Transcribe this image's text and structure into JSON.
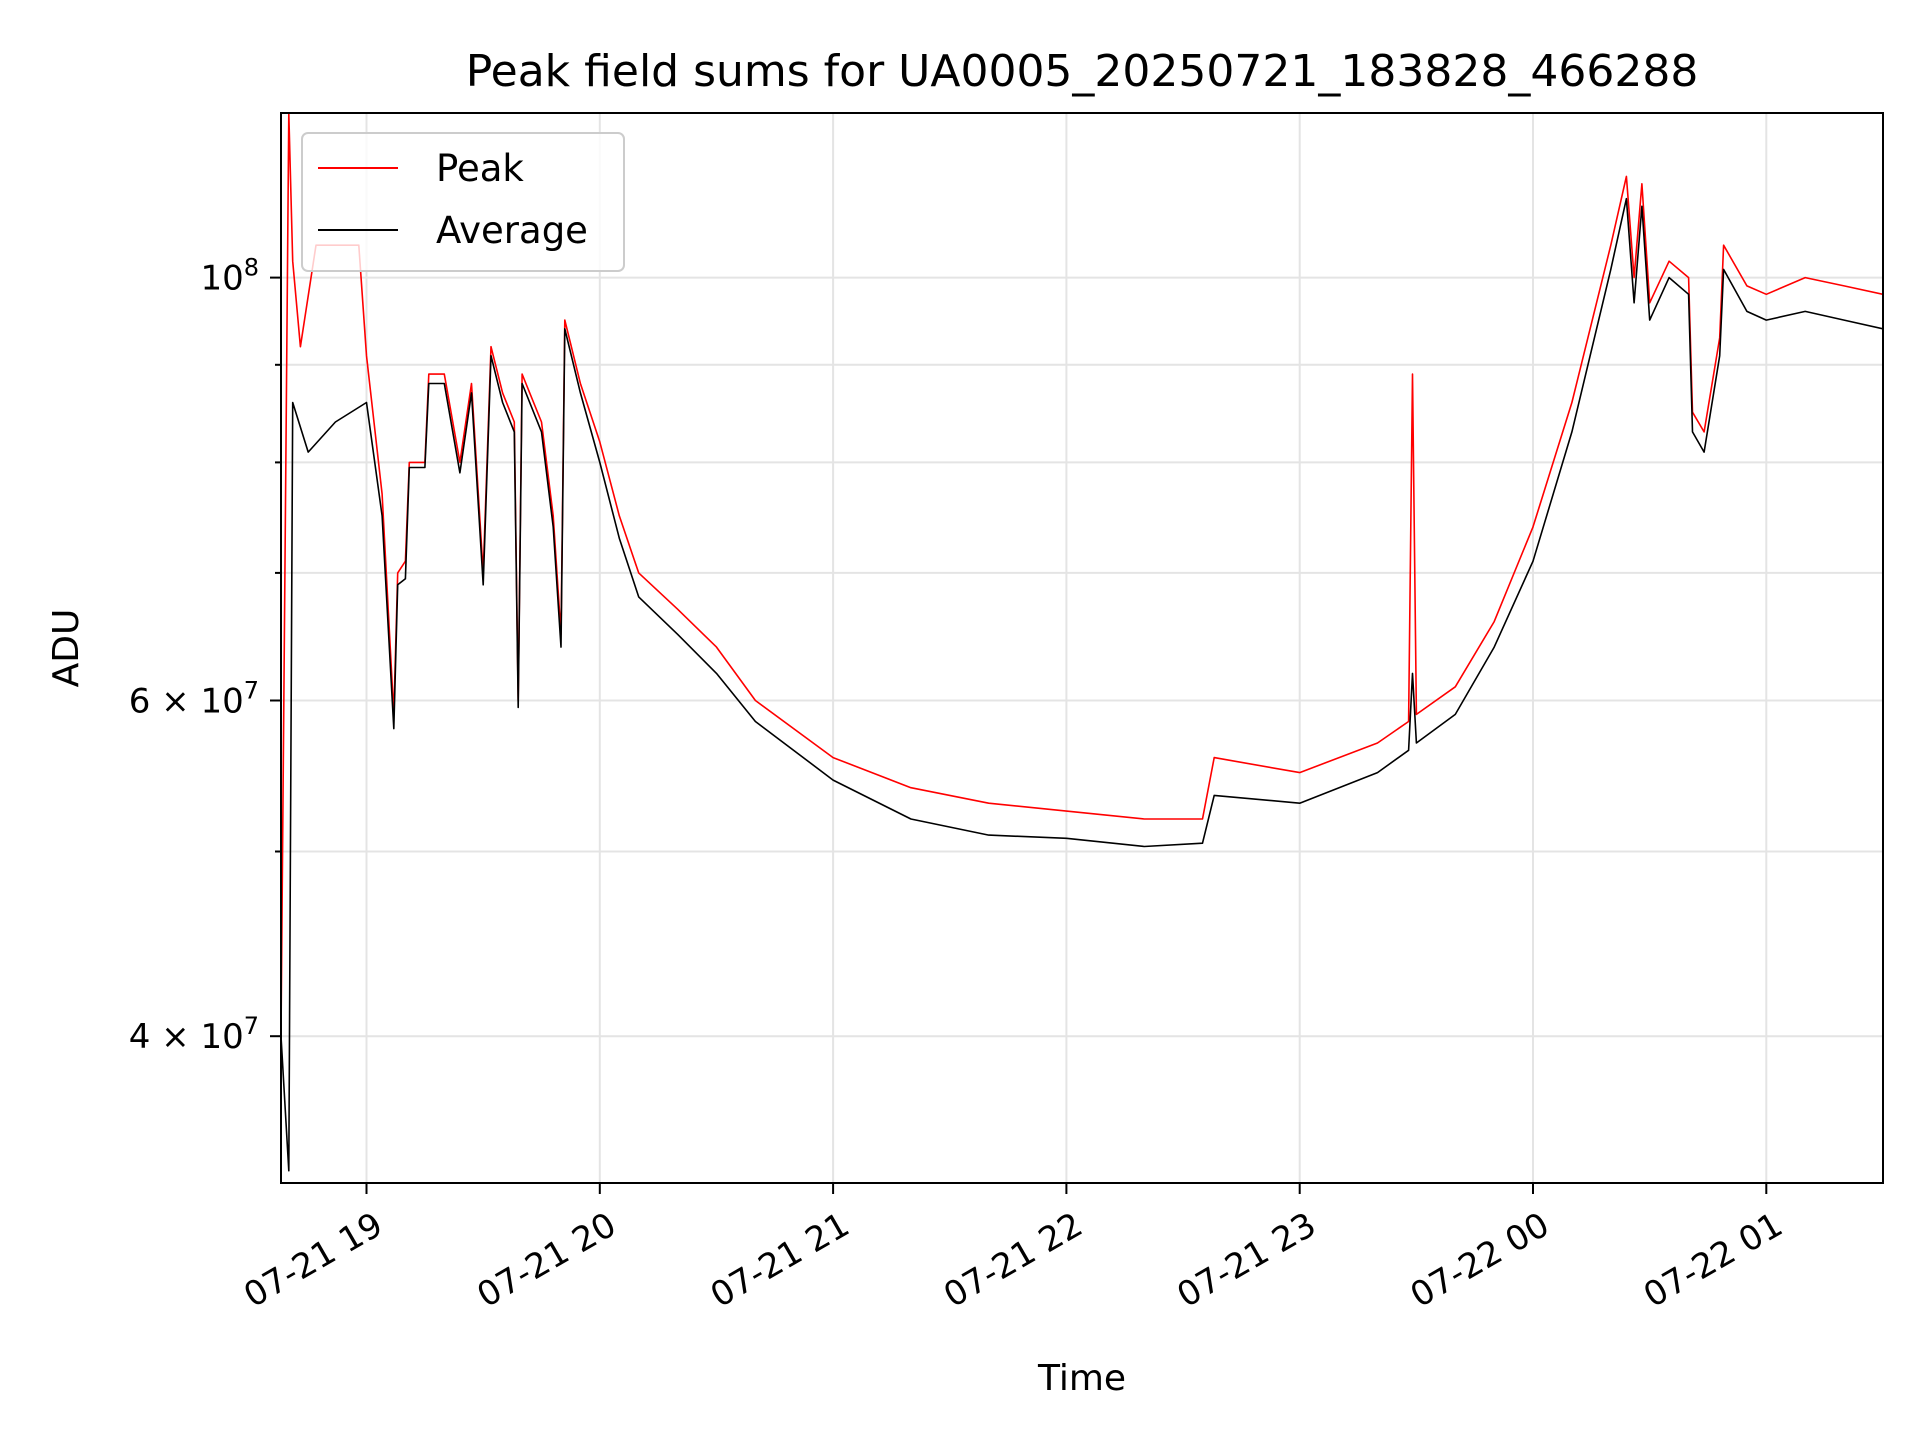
{
  "chart_data": {
    "type": "line",
    "title": "Peak field sums for UA0005_20250721_183828_466288",
    "xlabel": "Time",
    "ylabel": "ADU",
    "x_range": [
      "2025-07-21 18:38",
      "2025-07-22 01:30"
    ],
    "ylim": [
      33500000,
      122000000
    ],
    "yscale": "log",
    "grid": true,
    "legend_position": "top-left",
    "x_ticks": [
      {
        "t": "2025-07-21 19:00",
        "label": "07-21 19"
      },
      {
        "t": "2025-07-21 20:00",
        "label": "07-21 20"
      },
      {
        "t": "2025-07-21 21:00",
        "label": "07-21 21"
      },
      {
        "t": "2025-07-21 22:00",
        "label": "07-21 22"
      },
      {
        "t": "2025-07-21 23:00",
        "label": "07-21 23"
      },
      {
        "t": "2025-07-22 00:00",
        "label": "07-22 00"
      },
      {
        "t": "2025-07-22 01:00",
        "label": "07-22 01"
      }
    ],
    "y_major_ticks": [
      {
        "v": 40000000,
        "base": "4 × 10",
        "exp": "7"
      },
      {
        "v": 60000000,
        "base": "6 × 10",
        "exp": "7"
      },
      {
        "v": 100000000,
        "base": "10",
        "exp": "8"
      }
    ],
    "y_minor_ticks": [
      50000000,
      70000000,
      80000000,
      90000000
    ],
    "series": [
      {
        "name": "Peak",
        "color": "#ff0000",
        "points": [
          [
            "2025-07-21 18:38",
            40000000
          ],
          [
            "2025-07-21 18:40",
            122000000
          ],
          [
            "2025-07-21 18:41",
            102000000
          ],
          [
            "2025-07-21 18:43",
            92000000
          ],
          [
            "2025-07-21 18:47",
            104000000
          ],
          [
            "2025-07-21 18:52",
            104000000
          ],
          [
            "2025-07-21 18:58",
            104000000
          ],
          [
            "2025-07-21 19:00",
            91000000
          ],
          [
            "2025-07-21 19:04",
            77000000
          ],
          [
            "2025-07-21 19:07",
            59000000
          ],
          [
            "2025-07-21 19:08",
            70000000
          ],
          [
            "2025-07-21 19:10",
            71000000
          ],
          [
            "2025-07-21 19:11",
            80000000
          ],
          [
            "2025-07-21 19:15",
            80000000
          ],
          [
            "2025-07-21 19:16",
            89000000
          ],
          [
            "2025-07-21 19:20",
            89000000
          ],
          [
            "2025-07-21 19:24",
            80000000
          ],
          [
            "2025-07-21 19:27",
            88000000
          ],
          [
            "2025-07-21 19:30",
            70000000
          ],
          [
            "2025-07-21 19:32",
            92000000
          ],
          [
            "2025-07-21 19:35",
            87000000
          ],
          [
            "2025-07-21 19:38",
            84000000
          ],
          [
            "2025-07-21 19:39",
            60000000
          ],
          [
            "2025-07-21 19:40",
            89000000
          ],
          [
            "2025-07-21 19:45",
            84000000
          ],
          [
            "2025-07-21 19:48",
            75000000
          ],
          [
            "2025-07-21 19:50",
            65000000
          ],
          [
            "2025-07-21 19:51",
            95000000
          ],
          [
            "2025-07-21 19:55",
            88000000
          ],
          [
            "2025-07-21 20:00",
            82000000
          ],
          [
            "2025-07-21 20:05",
            75000000
          ],
          [
            "2025-07-21 20:10",
            70000000
          ],
          [
            "2025-07-21 20:20",
            67000000
          ],
          [
            "2025-07-21 20:30",
            64000000
          ],
          [
            "2025-07-21 20:40",
            60000000
          ],
          [
            "2025-07-21 21:00",
            56000000
          ],
          [
            "2025-07-21 21:20",
            54000000
          ],
          [
            "2025-07-21 21:40",
            53000000
          ],
          [
            "2025-07-21 22:00",
            52500000
          ],
          [
            "2025-07-21 22:20",
            52000000
          ],
          [
            "2025-07-21 22:35",
            52000000
          ],
          [
            "2025-07-21 22:38",
            56000000
          ],
          [
            "2025-07-21 23:00",
            55000000
          ],
          [
            "2025-07-21 23:20",
            57000000
          ],
          [
            "2025-07-21 23:28",
            58500000
          ],
          [
            "2025-07-21 23:29",
            89000000
          ],
          [
            "2025-07-21 23:30",
            59000000
          ],
          [
            "2025-07-21 23:40",
            61000000
          ],
          [
            "2025-07-21 23:50",
            66000000
          ],
          [
            "2025-07-22 00:00",
            74000000
          ],
          [
            "2025-07-22 00:10",
            86000000
          ],
          [
            "2025-07-22 00:20",
            104000000
          ],
          [
            "2025-07-22 00:24",
            113000000
          ],
          [
            "2025-07-22 00:26",
            100000000
          ],
          [
            "2025-07-22 00:28",
            112000000
          ],
          [
            "2025-07-22 00:30",
            97000000
          ],
          [
            "2025-07-22 00:35",
            102000000
          ],
          [
            "2025-07-22 00:40",
            100000000
          ],
          [
            "2025-07-22 00:41",
            85000000
          ],
          [
            "2025-07-22 00:44",
            83000000
          ],
          [
            "2025-07-22 00:48",
            93000000
          ],
          [
            "2025-07-22 00:49",
            104000000
          ],
          [
            "2025-07-22 00:55",
            99000000
          ],
          [
            "2025-07-22 01:00",
            98000000
          ],
          [
            "2025-07-22 01:10",
            100000000
          ],
          [
            "2025-07-22 01:20",
            99000000
          ],
          [
            "2025-07-22 01:30",
            98000000
          ]
        ]
      },
      {
        "name": "Average",
        "color": "#000000",
        "points": [
          [
            "2025-07-21 18:38",
            40000000
          ],
          [
            "2025-07-21 18:40",
            34000000
          ],
          [
            "2025-07-21 18:41",
            86000000
          ],
          [
            "2025-07-21 18:45",
            81000000
          ],
          [
            "2025-07-21 18:52",
            84000000
          ],
          [
            "2025-07-21 19:00",
            86000000
          ],
          [
            "2025-07-21 19:04",
            75000000
          ],
          [
            "2025-07-21 19:07",
            58000000
          ],
          [
            "2025-07-21 19:08",
            69000000
          ],
          [
            "2025-07-21 19:10",
            69500000
          ],
          [
            "2025-07-21 19:11",
            79500000
          ],
          [
            "2025-07-21 19:15",
            79500000
          ],
          [
            "2025-07-21 19:16",
            88000000
          ],
          [
            "2025-07-21 19:20",
            88000000
          ],
          [
            "2025-07-21 19:24",
            79000000
          ],
          [
            "2025-07-21 19:27",
            87000000
          ],
          [
            "2025-07-21 19:30",
            69000000
          ],
          [
            "2025-07-21 19:32",
            91000000
          ],
          [
            "2025-07-21 19:35",
            86000000
          ],
          [
            "2025-07-21 19:38",
            83000000
          ],
          [
            "2025-07-21 19:39",
            59500000
          ],
          [
            "2025-07-21 19:40",
            88000000
          ],
          [
            "2025-07-21 19:45",
            83000000
          ],
          [
            "2025-07-21 19:48",
            74000000
          ],
          [
            "2025-07-21 19:50",
            64000000
          ],
          [
            "2025-07-21 19:51",
            94000000
          ],
          [
            "2025-07-21 19:55",
            87000000
          ],
          [
            "2025-07-21 20:00",
            80000000
          ],
          [
            "2025-07-21 20:05",
            73000000
          ],
          [
            "2025-07-21 20:10",
            68000000
          ],
          [
            "2025-07-21 20:20",
            65000000
          ],
          [
            "2025-07-21 20:30",
            62000000
          ],
          [
            "2025-07-21 20:40",
            58500000
          ],
          [
            "2025-07-21 21:00",
            54500000
          ],
          [
            "2025-07-21 21:20",
            52000000
          ],
          [
            "2025-07-21 21:40",
            51000000
          ],
          [
            "2025-07-21 22:00",
            50800000
          ],
          [
            "2025-07-21 22:20",
            50300000
          ],
          [
            "2025-07-21 22:35",
            50500000
          ],
          [
            "2025-07-21 22:38",
            53500000
          ],
          [
            "2025-07-21 23:00",
            53000000
          ],
          [
            "2025-07-21 23:20",
            55000000
          ],
          [
            "2025-07-21 23:28",
            56500000
          ],
          [
            "2025-07-21 23:29",
            62000000
          ],
          [
            "2025-07-21 23:30",
            57000000
          ],
          [
            "2025-07-21 23:40",
            59000000
          ],
          [
            "2025-07-21 23:50",
            64000000
          ],
          [
            "2025-07-22 00:00",
            71000000
          ],
          [
            "2025-07-22 00:10",
            83000000
          ],
          [
            "2025-07-22 00:20",
            101000000
          ],
          [
            "2025-07-22 00:24",
            110000000
          ],
          [
            "2025-07-22 00:26",
            97000000
          ],
          [
            "2025-07-22 00:28",
            109000000
          ],
          [
            "2025-07-22 00:30",
            95000000
          ],
          [
            "2025-07-22 00:35",
            100000000
          ],
          [
            "2025-07-22 00:40",
            98000000
          ],
          [
            "2025-07-22 00:41",
            83000000
          ],
          [
            "2025-07-22 00:44",
            81000000
          ],
          [
            "2025-07-22 00:48",
            91000000
          ],
          [
            "2025-07-22 00:49",
            101000000
          ],
          [
            "2025-07-22 00:55",
            96000000
          ],
          [
            "2025-07-22 01:00",
            95000000
          ],
          [
            "2025-07-22 01:10",
            96000000
          ],
          [
            "2025-07-22 01:20",
            95000000
          ],
          [
            "2025-07-22 01:30",
            94000000
          ]
        ]
      }
    ]
  }
}
